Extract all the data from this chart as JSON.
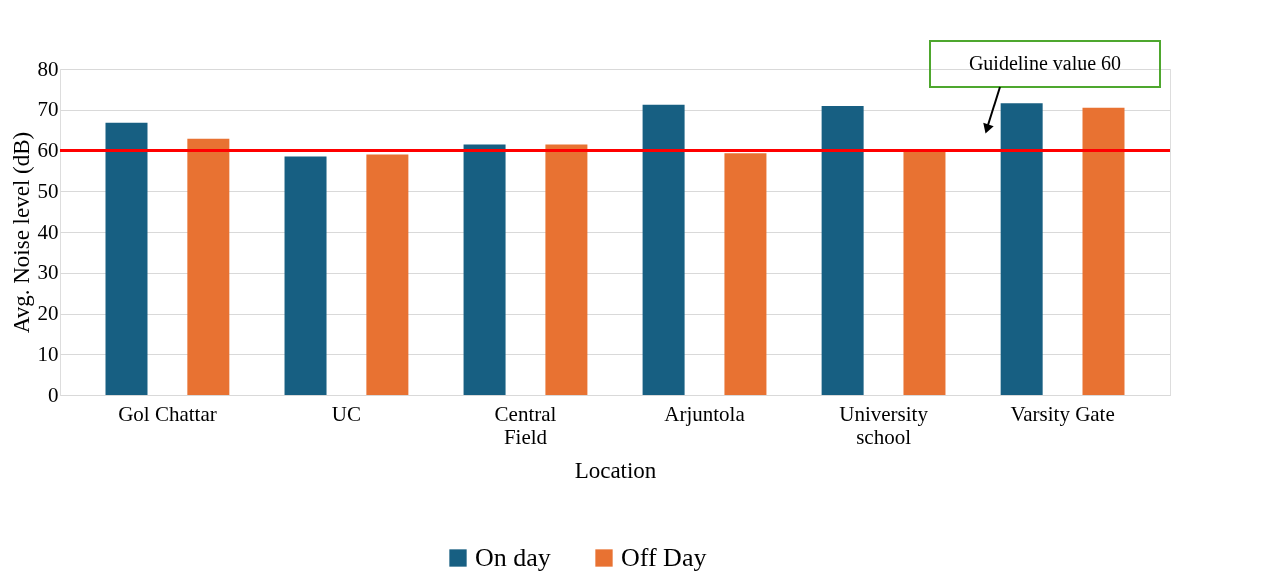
{
  "chart_data": {
    "type": "bar",
    "xlabel": "Location",
    "ylabel": "Avg. Noise level (dB)",
    "categories": [
      "Gol Chattar",
      "UC",
      "Central Field",
      "Arjuntola",
      "University school",
      "Varsity Gate"
    ],
    "series": [
      {
        "name": "On day",
        "color": "#175f82",
        "values": [
          66.8,
          58.5,
          61.5,
          71.2,
          70.9,
          71.6
        ]
      },
      {
        "name": "Off Day",
        "color": "#e87232",
        "values": [
          62.9,
          59.0,
          61.5,
          59.3,
          60.0,
          70.5
        ]
      }
    ],
    "ylim": [
      0,
      80
    ],
    "yticks": [
      0,
      10,
      20,
      30,
      40,
      50,
      60,
      70,
      80
    ],
    "grid": "y",
    "legend": "bottom",
    "ref_lines": [
      {
        "axis": "y",
        "value": 60,
        "color": "#ff0000"
      }
    ],
    "annotations": [
      "Guideline value 60"
    ]
  }
}
